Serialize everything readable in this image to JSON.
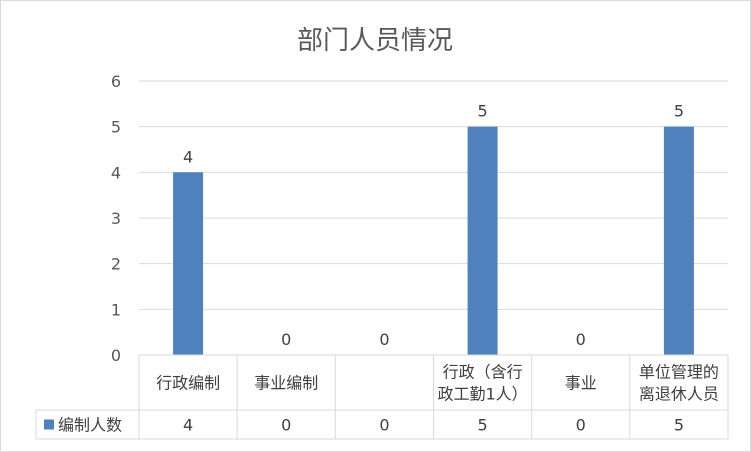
{
  "chart_data": {
    "type": "bar",
    "title": "部门人员情况",
    "categories": [
      [
        "行政编制"
      ],
      [
        "事业编制"
      ],
      [
        ""
      ],
      [
        "行政（含行",
        "政工勤1人）"
      ],
      [
        "事业"
      ],
      [
        "单位管理的",
        "离退休人员"
      ]
    ],
    "series": [
      {
        "name": "编制人数",
        "values": [
          4,
          0,
          0,
          5,
          0,
          5
        ],
        "color": "#4f81bd"
      }
    ],
    "ylim": [
      0,
      6
    ],
    "yticks": [
      0,
      1,
      2,
      3,
      4,
      5,
      6
    ],
    "grid": true,
    "data_labels": true,
    "legend": "data-table-row",
    "gridline_color": "#d9d9d9"
  }
}
